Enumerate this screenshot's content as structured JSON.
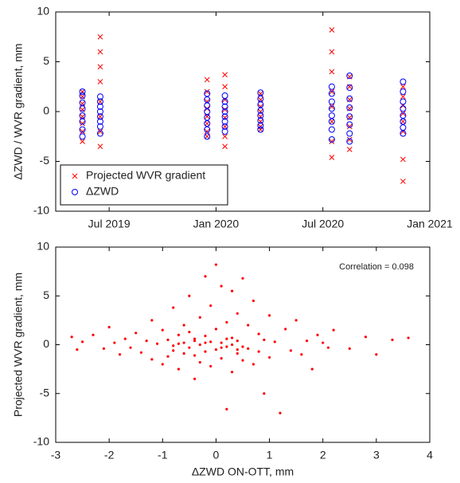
{
  "chart_data": [
    {
      "type": "scatter",
      "ylabel": "ΔZWD / WVR gradient, mm",
      "xlim": [
        "2019-04",
        "2021-01"
      ],
      "xticks": [
        {
          "value": "2019-07",
          "label": "Jul 2019"
        },
        {
          "value": "2020-01",
          "label": "Jan 2020"
        },
        {
          "value": "2020-07",
          "label": "Jul 2020"
        },
        {
          "value": "2021-01",
          "label": "Jan 2021"
        }
      ],
      "ylim": [
        -10,
        10
      ],
      "yticks": [
        -10,
        -5,
        0,
        5,
        10
      ],
      "legend": "lower left",
      "series": [
        {
          "name": "Projected WVR gradient",
          "color": "#ff0000",
          "marker": "x",
          "x": [
            "2019-05",
            "2019-05",
            "2019-05",
            "2019-05",
            "2019-05",
            "2019-05",
            "2019-05",
            "2019-05",
            "2019-06",
            "2019-06",
            "2019-06",
            "2019-06",
            "2019-06",
            "2019-06",
            "2019-06",
            "2019-06",
            "2019-12",
            "2019-12",
            "2019-12",
            "2019-12",
            "2019-12",
            "2019-12",
            "2019-12",
            "2019-12",
            "2020-01",
            "2020-01",
            "2020-01",
            "2020-01",
            "2020-01",
            "2020-01",
            "2020-01",
            "2020-01",
            "2020-03",
            "2020-03",
            "2020-03",
            "2020-03",
            "2020-03",
            "2020-03",
            "2020-03",
            "2020-03",
            "2020-07",
            "2020-07",
            "2020-07",
            "2020-07",
            "2020-07",
            "2020-07",
            "2020-07",
            "2020-07",
            "2020-08",
            "2020-08",
            "2020-08",
            "2020-08",
            "2020-08",
            "2020-08",
            "2020-08",
            "2020-08",
            "2020-11",
            "2020-11",
            "2020-11",
            "2020-11",
            "2020-11",
            "2020-11",
            "2020-11",
            "2020-11"
          ],
          "values": [
            2.0,
            1.5,
            0.8,
            0.2,
            -0.5,
            -1.2,
            -2.0,
            -3.0,
            7.5,
            6.0,
            4.5,
            3.0,
            1.0,
            -0.5,
            -2.0,
            -3.5,
            3.2,
            2.0,
            1.0,
            0.3,
            -0.5,
            -1.2,
            -2.0,
            -2.5,
            3.7,
            2.5,
            1.2,
            0.2,
            -0.6,
            -1.5,
            -2.5,
            -3.5,
            1.8,
            1.2,
            0.5,
            0,
            -0.5,
            -1.0,
            -1.5,
            -1.8,
            8.2,
            6.0,
            4.0,
            2.0,
            0.5,
            -1.0,
            -3.0,
            -4.6,
            3.5,
            2.5,
            1.2,
            0.3,
            -0.6,
            -1.5,
            -2.8,
            -3.8,
            2.5,
            1.5,
            0.6,
            -0.2,
            -1.0,
            -2.0,
            -4.8,
            -7.0
          ]
        },
        {
          "name": "ΔZWD",
          "color": "#0000ff",
          "marker": "o",
          "x": [
            "2019-05",
            "2019-05",
            "2019-05",
            "2019-05",
            "2019-05",
            "2019-05",
            "2019-05",
            "2019-05",
            "2019-06",
            "2019-06",
            "2019-06",
            "2019-06",
            "2019-06",
            "2019-06",
            "2019-06",
            "2019-06",
            "2019-12",
            "2019-12",
            "2019-12",
            "2019-12",
            "2019-12",
            "2019-12",
            "2019-12",
            "2019-12",
            "2020-01",
            "2020-01",
            "2020-01",
            "2020-01",
            "2020-01",
            "2020-01",
            "2020-01",
            "2020-01",
            "2020-03",
            "2020-03",
            "2020-03",
            "2020-03",
            "2020-03",
            "2020-03",
            "2020-03",
            "2020-03",
            "2020-07",
            "2020-07",
            "2020-07",
            "2020-07",
            "2020-07",
            "2020-07",
            "2020-07",
            "2020-07",
            "2020-08",
            "2020-08",
            "2020-08",
            "2020-08",
            "2020-08",
            "2020-08",
            "2020-08",
            "2020-08",
            "2020-11",
            "2020-11",
            "2020-11",
            "2020-11",
            "2020-11",
            "2020-11",
            "2020-11",
            "2020-11"
          ],
          "values": [
            2.0,
            1.6,
            0.9,
            0.3,
            -0.4,
            -1.0,
            -1.8,
            -2.5,
            1.5,
            1.0,
            0.5,
            0,
            -0.5,
            -1.0,
            -1.5,
            -2.2,
            1.8,
            1.2,
            0.6,
            0,
            -0.6,
            -1.2,
            -1.8,
            -2.5,
            1.6,
            1.0,
            0.5,
            0,
            -0.5,
            -1.0,
            -1.5,
            -2.0,
            1.9,
            1.3,
            0.7,
            0.1,
            -0.4,
            -0.9,
            -1.4,
            -1.8,
            2.5,
            1.8,
            1.0,
            0.3,
            -0.4,
            -1.0,
            -1.8,
            -2.8,
            3.6,
            2.4,
            1.3,
            0.4,
            -0.5,
            -1.3,
            -2.2,
            -3.0,
            3.0,
            2.0,
            1.0,
            0.3,
            -0.4,
            -1.0,
            -1.6,
            -2.2
          ]
        }
      ]
    },
    {
      "type": "scatter",
      "xlabel": "ΔZWD ON-OTT, mm",
      "ylabel": "Projected WVR gradient, mm",
      "annotation": "Correlation = 0.098",
      "color": "#ff0000",
      "xlim": [
        -3,
        4
      ],
      "xticks": [
        -3,
        -2,
        -1,
        0,
        1,
        2,
        3,
        4
      ],
      "ylim": [
        -10,
        10
      ],
      "yticks": [
        -10,
        -5,
        0,
        5,
        10
      ],
      "x": [
        -2.7,
        -2.6,
        -2.5,
        -2.3,
        -2.1,
        -2.0,
        -1.9,
        -1.8,
        -1.7,
        -1.6,
        -1.5,
        -1.4,
        -1.3,
        -1.2,
        -1.2,
        -1.1,
        -1.0,
        -1.0,
        -0.9,
        -0.9,
        -0.8,
        -0.8,
        -0.7,
        -0.7,
        -0.6,
        -0.6,
        -0.6,
        -0.5,
        -0.5,
        -0.5,
        -0.4,
        -0.4,
        -0.4,
        -0.3,
        -0.3,
        -0.3,
        -0.2,
        -0.2,
        -0.2,
        -0.1,
        -0.1,
        -0.1,
        0,
        0,
        0,
        0.1,
        0.1,
        0.1,
        0.2,
        0.2,
        0.2,
        0.3,
        0.3,
        0.3,
        0.4,
        0.4,
        0.4,
        0.5,
        0.5,
        0.6,
        0.6,
        0.7,
        0.7,
        0.8,
        0.8,
        0.9,
        0.9,
        1.0,
        1.0,
        1.1,
        1.2,
        1.3,
        1.4,
        1.5,
        1.6,
        1.7,
        1.8,
        1.9,
        2.0,
        2.1,
        2.2,
        2.5,
        2.8,
        3.0,
        3.3,
        3.6,
        -0.8,
        -0.2,
        0.1,
        0.2,
        0.5,
        -0.4,
        0.4,
        -0.7,
        0.3
      ],
      "values": [
        0.8,
        -0.5,
        0.3,
        1.0,
        -0.4,
        1.8,
        0.2,
        -1.0,
        0.6,
        -0.3,
        1.2,
        -0.8,
        0.4,
        2.5,
        -1.5,
        0.1,
        -2.0,
        1.5,
        0.5,
        -1.2,
        3.8,
        -0.6,
        1.0,
        -2.5,
        0.2,
        2.0,
        -0.9,
        5.0,
        -0.3,
        1.3,
        -3.5,
        0.6,
        -1.1,
        2.8,
        0.0,
        -1.8,
        7.0,
        0.9,
        -0.7,
        4.0,
        -2.2,
        0.3,
        8.2,
        -0.5,
        1.6,
        6.0,
        -1.4,
        0.2,
        -6.6,
        2.3,
        -0.2,
        5.5,
        -2.8,
        0.7,
        3.2,
        -0.9,
        0.4,
        6.8,
        -1.6,
        2.0,
        -0.4,
        4.5,
        -2.0,
        1.1,
        -0.7,
        -5.0,
        0.5,
        3.0,
        -1.3,
        0.3,
        -7.0,
        1.6,
        -0.6,
        2.5,
        -1.0,
        0.4,
        -2.5,
        1.0,
        0.2,
        -0.3,
        1.5,
        -0.4,
        0.8,
        -1.0,
        0.5,
        0.7,
        -0.1,
        0.2,
        -0.3,
        0.6,
        -0.2,
        0.4,
        -0.5,
        0.1,
        0.0
      ]
    }
  ]
}
